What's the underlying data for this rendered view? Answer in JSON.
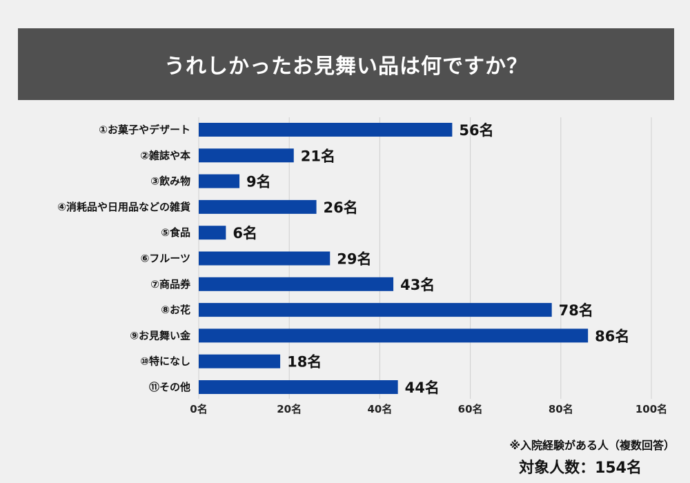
{
  "title": "うれしかったお見舞い品は何ですか？",
  "note": "※入院経験がある人（複数回答）",
  "total": "対象人数：154名",
  "colors": {
    "bar": "#0a44a5",
    "title_bg": "#505050",
    "grid": "#cfcfcf"
  },
  "chart_data": {
    "type": "bar",
    "orientation": "horizontal",
    "title": "うれしかったお見舞い品は何ですか？",
    "categories": [
      "①お菓子やデザート",
      "②雑誌や本",
      "③飲み物",
      "④消耗品や日用品などの雑貨",
      "⑤食品",
      "⑥フルーツ",
      "⑦商品券",
      "⑧お花",
      "⑨お見舞い金",
      "⑩特になし",
      "⑪その他"
    ],
    "values": [
      56,
      21,
      9,
      26,
      6,
      29,
      43,
      78,
      86,
      18,
      44
    ],
    "value_labels": [
      "56名",
      "21名",
      "9名",
      "26名",
      "6名",
      "29名",
      "43名",
      "78名",
      "86名",
      "18名",
      "44名"
    ],
    "xlim": [
      0,
      100
    ],
    "xticks": [
      0,
      20,
      40,
      60,
      80,
      100
    ],
    "xtick_labels": [
      "0名",
      "20名",
      "40名",
      "60名",
      "80名",
      "100名"
    ],
    "xlabel": "",
    "ylabel": "",
    "grid": true
  }
}
